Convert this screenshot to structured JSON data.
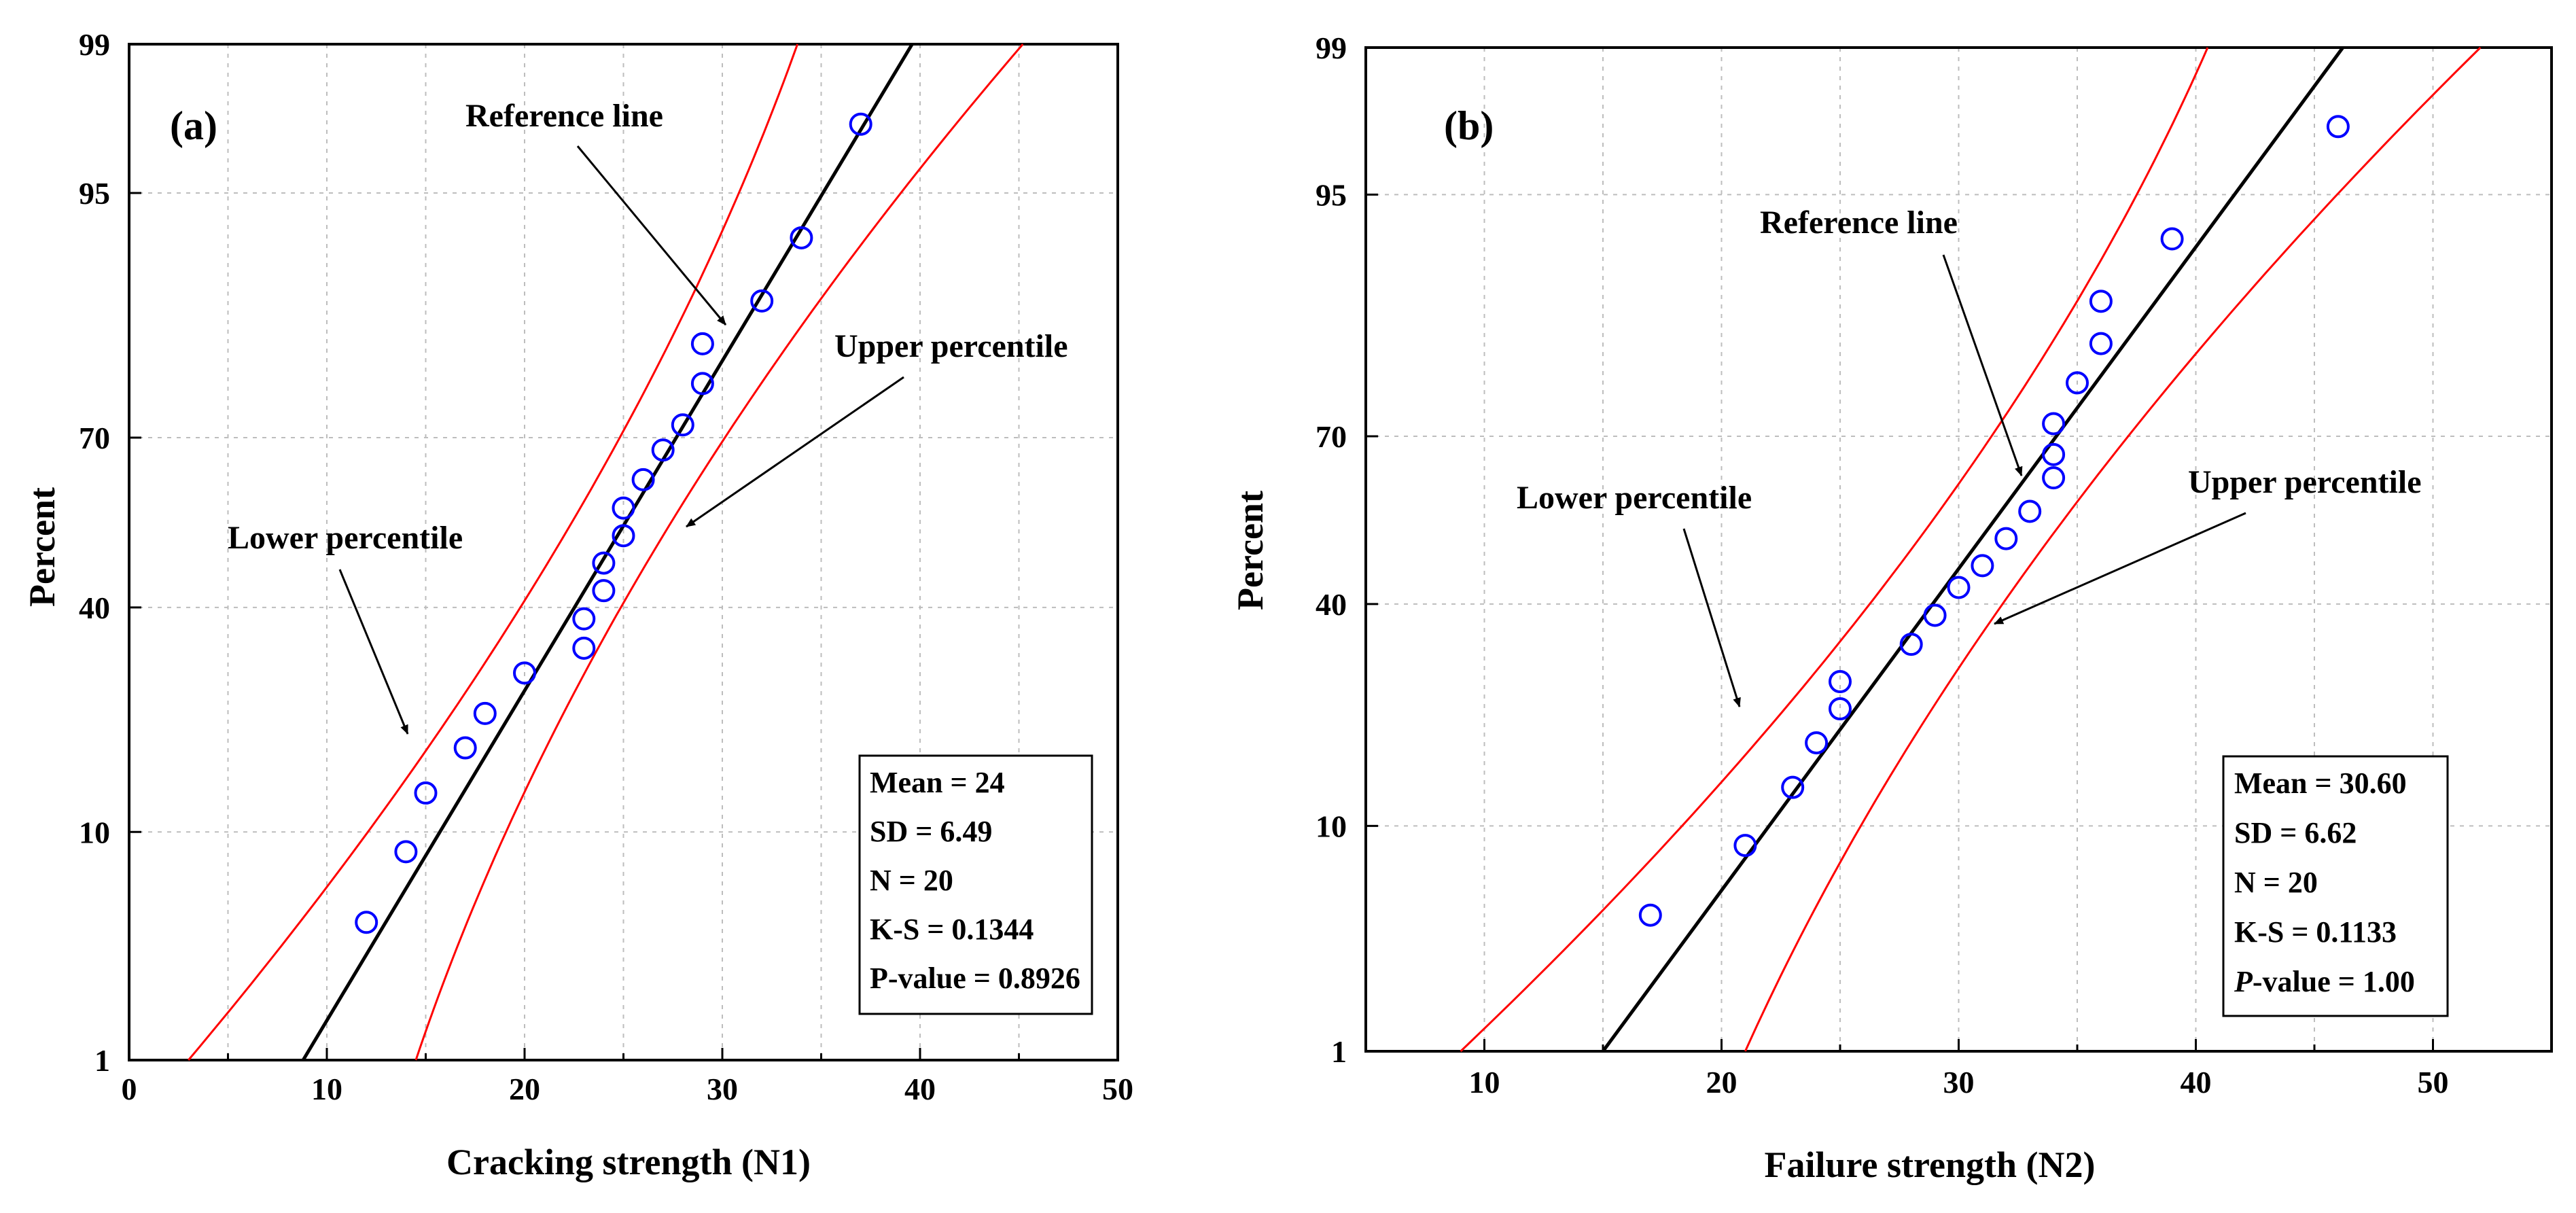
{
  "colors": {
    "points": "#0000ff",
    "reference": "#000000",
    "percentile": "#ff0000",
    "grid": "#bdbdbd"
  },
  "chart_data": [
    {
      "type": "scatter",
      "panel_label": "(a)",
      "xlabel": "Cracking strength (N1)",
      "ylabel": "Percent",
      "xlim": [
        0,
        50
      ],
      "x_ticks": [
        0,
        10,
        20,
        30,
        40,
        50
      ],
      "y_ticks": [
        1,
        10,
        40,
        70,
        95,
        99
      ],
      "y_scale": "normal-probability",
      "points": [
        {
          "x": 12,
          "p": 4.5
        },
        {
          "x": 14,
          "p": 8.5
        },
        {
          "x": 15,
          "p": 13.5
        },
        {
          "x": 17,
          "p": 18.5
        },
        {
          "x": 18,
          "p": 23
        },
        {
          "x": 20,
          "p": 29
        },
        {
          "x": 23,
          "p": 33
        },
        {
          "x": 23,
          "p": 38
        },
        {
          "x": 24,
          "p": 43
        },
        {
          "x": 24,
          "p": 48
        },
        {
          "x": 25,
          "p": 53
        },
        {
          "x": 25,
          "p": 58
        },
        {
          "x": 26,
          "p": 63
        },
        {
          "x": 27,
          "p": 68
        },
        {
          "x": 28,
          "p": 72
        },
        {
          "x": 29,
          "p": 78
        },
        {
          "x": 29,
          "p": 83
        },
        {
          "x": 32,
          "p": 87.5
        },
        {
          "x": 34,
          "p": 92.5
        },
        {
          "x": 37,
          "p": 97.5
        }
      ],
      "reference_line": {
        "x_at_p1": 8.8,
        "x_at_p99": 39.6
      },
      "lower_percentile_band": {
        "x_at_p1": 3,
        "x_at_p50": 21.5,
        "x_at_p99": 33.8
      },
      "upper_percentile_band": {
        "x_at_p1": 14.5,
        "x_at_p50": 26.5,
        "x_at_p99": 45.2
      },
      "annotations": {
        "reference": "Reference line",
        "upper": "Upper percentile",
        "lower": "Lower percentile"
      },
      "stats": [
        "Mean = 24",
        "SD = 6.49",
        "N = 20",
        "K-S = 0.1344",
        "P-value = 0.8926"
      ]
    },
    {
      "type": "scatter",
      "panel_label": "(b)",
      "xlabel": "Failure strength (N2)",
      "ylabel": "Percent",
      "xlim": [
        5,
        55
      ],
      "x_ticks": [
        10,
        20,
        30,
        40,
        50
      ],
      "y_ticks": [
        1,
        10,
        40,
        70,
        95,
        99
      ],
      "y_scale": "normal-probability",
      "points": [
        {
          "x": 17,
          "p": 4.5
        },
        {
          "x": 21,
          "p": 8.5
        },
        {
          "x": 23,
          "p": 13.5
        },
        {
          "x": 24,
          "p": 18.5
        },
        {
          "x": 25,
          "p": 23
        },
        {
          "x": 25,
          "p": 27
        },
        {
          "x": 28,
          "p": 33
        },
        {
          "x": 29,
          "p": 38
        },
        {
          "x": 30,
          "p": 43
        },
        {
          "x": 31,
          "p": 47
        },
        {
          "x": 32,
          "p": 52
        },
        {
          "x": 33,
          "p": 57
        },
        {
          "x": 34,
          "p": 63
        },
        {
          "x": 34,
          "p": 67
        },
        {
          "x": 34,
          "p": 72
        },
        {
          "x": 35,
          "p": 78
        },
        {
          "x": 36,
          "p": 83
        },
        {
          "x": 36,
          "p": 87.5
        },
        {
          "x": 39,
          "p": 92.5
        },
        {
          "x": 46,
          "p": 97.5
        }
      ],
      "reference_line": {
        "x_at_p1": 15,
        "x_at_p99": 46.2
      },
      "lower_percentile_band": {
        "x_at_p1": 9,
        "x_at_p50": 28,
        "x_at_p99": 40.5
      },
      "upper_percentile_band": {
        "x_at_p1": 21,
        "x_at_p50": 33.5,
        "x_at_p99": 52
      },
      "annotations": {
        "reference": "Reference line",
        "upper": "Upper percentile",
        "lower": "Lower percentile"
      },
      "stats": [
        "Mean = 30.60",
        "SD = 6.62",
        "N = 20",
        "K-S = 0.1133",
        "-value = 1.00"
      ],
      "stats_last_italic_prefix": "P"
    }
  ]
}
